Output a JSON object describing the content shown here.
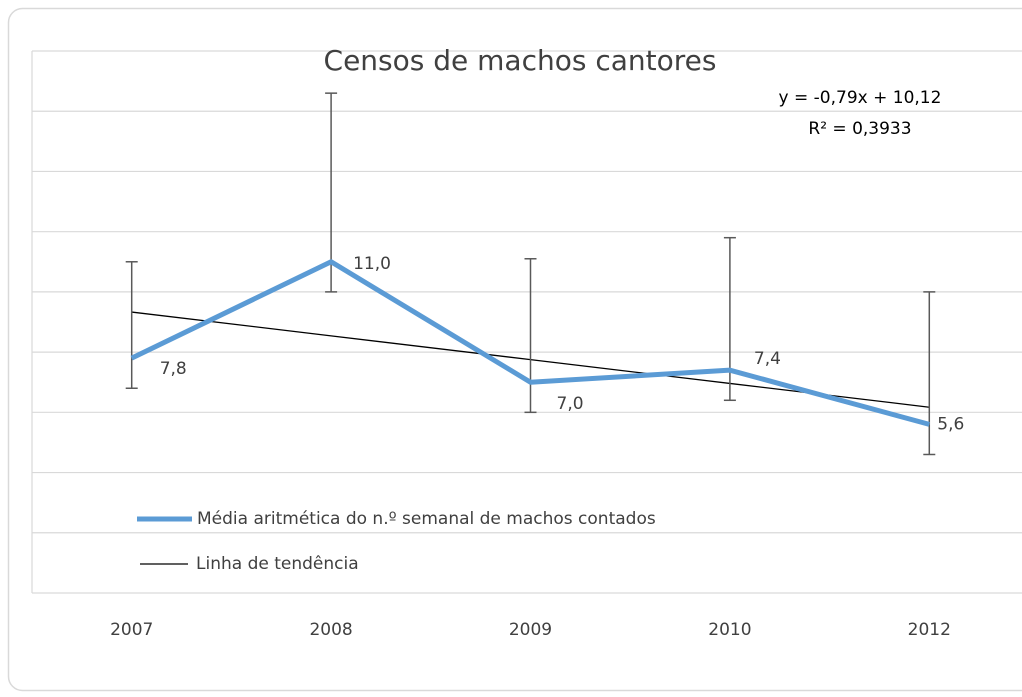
{
  "chart_data": {
    "type": "line",
    "title": "Censos de machos cantores",
    "categories": [
      "2007",
      "2008",
      "2009",
      "2010",
      "2012"
    ],
    "series": [
      {
        "name": "Média aritmética do n.º semanal de machos contados",
        "color": "#5b9bd5",
        "values": [
          7.8,
          11.0,
          7.0,
          7.4,
          5.6
        ],
        "value_labels": [
          "7,8",
          "11,0",
          "7,0",
          "7,4",
          "5,6"
        ],
        "error_plus": [
          3.2,
          5.6,
          4.1,
          4.4,
          4.4
        ],
        "error_minus": [
          1.0,
          1.0,
          1.0,
          1.0,
          1.0
        ]
      },
      {
        "name": "Linha de tendência",
        "color": "#000000",
        "values": [
          9.33,
          8.54,
          7.75,
          6.96,
          6.17
        ]
      }
    ],
    "annotations": [
      "y = -0,79x + 10,12",
      "R² = 0,3933"
    ],
    "ylim": [
      0,
      18
    ],
    "yticks": [
      0,
      2,
      4,
      6,
      8,
      10,
      12,
      14,
      16,
      18
    ],
    "grid": true
  }
}
